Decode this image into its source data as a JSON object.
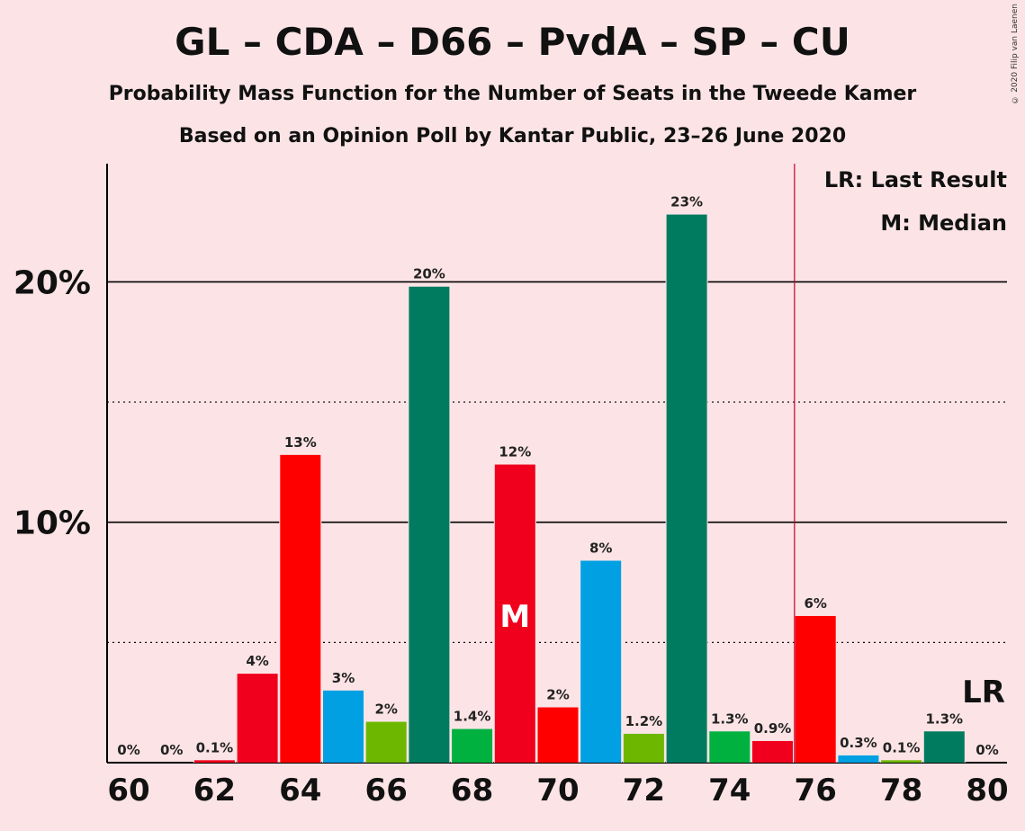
{
  "chart_data": {
    "type": "bar",
    "title": "GL – CDA – D66 – PvdA – SP – CU",
    "subtitle": "Probability Mass Function for the Number of Seats in the Tweede Kamer",
    "subtitle2": "Based on an Opinion Poll by Kantar Public, 23–26 June 2020",
    "copyright": "© 2020 Filip van Laenen",
    "legend": {
      "last_result": "LR: Last Result",
      "median": "M: Median"
    },
    "x_ticks": [
      "60",
      "62",
      "64",
      "66",
      "68",
      "70",
      "72",
      "74",
      "76",
      "78",
      "80"
    ],
    "y_ticks": [
      {
        "value": 10,
        "label": "10%"
      },
      {
        "value": 20,
        "label": "20%"
      }
    ],
    "ylim": [
      0,
      25
    ],
    "grid": true,
    "median_seat": 69,
    "median_label": "M",
    "last_result_seat": 76,
    "last_result_label": "LR",
    "bars": [
      {
        "seat": 60,
        "value": 0,
        "label": "0%",
        "color": "#F0001C"
      },
      {
        "seat": 61,
        "value": 0,
        "label": "0%",
        "color": "#F0001C"
      },
      {
        "seat": 62,
        "value": 0.1,
        "label": "0.1%",
        "color": "#F0001C"
      },
      {
        "seat": 63,
        "value": 3.7,
        "label": "4%",
        "color": "#F0001C"
      },
      {
        "seat": 64,
        "value": 12.8,
        "label": "13%",
        "color": "#FF0000"
      },
      {
        "seat": 65,
        "value": 3.0,
        "label": "3%",
        "color": "#00A0E2"
      },
      {
        "seat": 66,
        "value": 1.7,
        "label": "2%",
        "color": "#6DB700"
      },
      {
        "seat": 67,
        "value": 19.8,
        "label": "20%",
        "color": "#007B5F"
      },
      {
        "seat": 68,
        "value": 1.4,
        "label": "1.4%",
        "color": "#00B140"
      },
      {
        "seat": 69,
        "value": 12.4,
        "label": "12%",
        "color": "#F0001C"
      },
      {
        "seat": 70,
        "value": 2.3,
        "label": "2%",
        "color": "#FF0000"
      },
      {
        "seat": 71,
        "value": 8.4,
        "label": "8%",
        "color": "#00A0E2"
      },
      {
        "seat": 72,
        "value": 1.2,
        "label": "1.2%",
        "color": "#6DB700"
      },
      {
        "seat": 73,
        "value": 22.8,
        "label": "23%",
        "color": "#007B5F"
      },
      {
        "seat": 74,
        "value": 1.3,
        "label": "1.3%",
        "color": "#00B140"
      },
      {
        "seat": 75,
        "value": 0.9,
        "label": "0.9%",
        "color": "#F0001C"
      },
      {
        "seat": 76,
        "value": 6.1,
        "label": "6%",
        "color": "#FF0000"
      },
      {
        "seat": 77,
        "value": 0.3,
        "label": "0.3%",
        "color": "#00A0E2"
      },
      {
        "seat": 78,
        "value": 0.1,
        "label": "0.1%",
        "color": "#6DB700"
      },
      {
        "seat": 79,
        "value": 1.3,
        "label": "1.3%",
        "color": "#007B5F"
      },
      {
        "seat": 80,
        "value": 0,
        "label": "0%",
        "color": "#00B140"
      }
    ]
  }
}
